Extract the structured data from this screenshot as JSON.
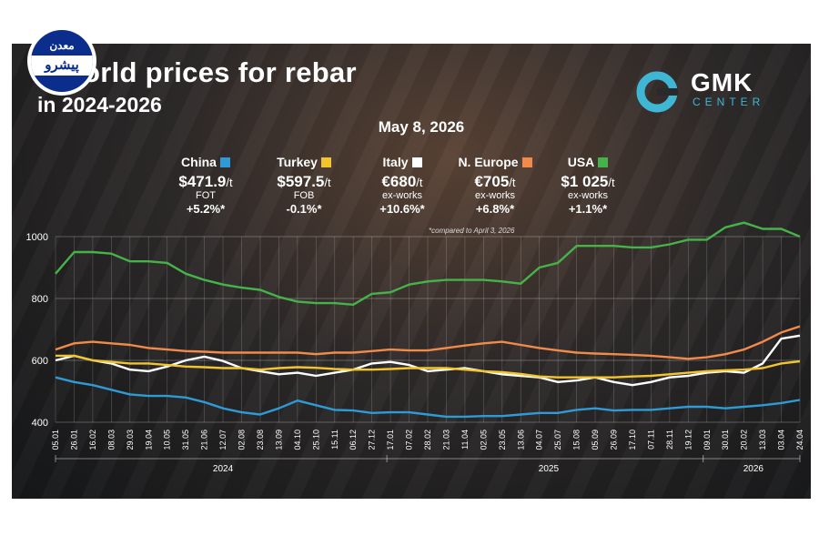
{
  "header": {
    "title_line1": "orld prices for rebar",
    "title_line2": "in 2024-2026",
    "date": "May 8, 2026",
    "note": "*compared to April 3, 2026"
  },
  "brand": {
    "name": "GMK",
    "sub": "CENTER",
    "accent": "#3fb6d4"
  },
  "logo": {
    "top": "معدن",
    "bottom": "پیشرو",
    "bg": "#0b2d8c"
  },
  "stats": [
    {
      "name": "China",
      "color": "#2f9bd6",
      "price": "$471.9",
      "unit": "/t",
      "basis": "FOT",
      "change": "+5.2%*"
    },
    {
      "name": "Turkey",
      "color": "#f2c42e",
      "price": "$597.5",
      "unit": "/t",
      "basis": "FOB",
      "change": "-0.1%*"
    },
    {
      "name": "Italy",
      "color": "#ffffff",
      "price": "€680",
      "unit": "/t",
      "basis": "ex-works",
      "change": "+10.6%*"
    },
    {
      "name": "N. Europe",
      "color": "#f28a4a",
      "price": "€705",
      "unit": "/t",
      "basis": "ex-works",
      "change": "+6.8%*"
    },
    {
      "name": "USA",
      "color": "#46b34a",
      "price": "$1 025",
      "unit": "/t",
      "basis": "ex-works",
      "change": "+1.1%*"
    }
  ],
  "chart_data": {
    "type": "line",
    "ylim": [
      400,
      1000
    ],
    "yticks": [
      "400",
      "600",
      "800",
      "1000"
    ],
    "grid": true,
    "x": [
      "05.01",
      "26.01",
      "16.02",
      "08.03",
      "29.03",
      "19.04",
      "10.05",
      "31.05",
      "21.06",
      "12.07",
      "02.08",
      "23.08",
      "13.09",
      "04.10",
      "25.10",
      "15.11",
      "06.12",
      "27.12",
      "17.01",
      "07.02",
      "28.02",
      "21.03",
      "11.04",
      "02.05",
      "23.05",
      "13.06",
      "04.07",
      "25.07",
      "15.08",
      "05.09",
      "26.09",
      "17.10",
      "07.11",
      "28.11",
      "19.12",
      "09.01",
      "30.01",
      "20.02",
      "13.03",
      "03.04",
      "24.04"
    ],
    "year_labels": [
      "2024",
      "2025",
      "2026"
    ],
    "series": [
      {
        "name": "USA",
        "color": "#46b34a",
        "values": [
          880,
          950,
          950,
          945,
          920,
          920,
          915,
          880,
          860,
          845,
          835,
          828,
          805,
          790,
          785,
          785,
          780,
          815,
          820,
          845,
          855,
          860,
          860,
          860,
          855,
          848,
          900,
          915,
          970,
          970,
          970,
          965,
          965,
          975,
          990,
          990,
          1030,
          1045,
          1025,
          1025,
          1000
        ]
      },
      {
        "name": "N. Europe",
        "color": "#f28a4a",
        "values": [
          635,
          655,
          660,
          655,
          650,
          640,
          635,
          630,
          628,
          625,
          625,
          625,
          625,
          625,
          620,
          625,
          625,
          630,
          635,
          632,
          632,
          640,
          648,
          655,
          660,
          650,
          640,
          632,
          625,
          622,
          620,
          618,
          615,
          610,
          605,
          610,
          620,
          635,
          660,
          690,
          710
        ]
      },
      {
        "name": "Italy",
        "color": "#ffffff",
        "values": [
          600,
          615,
          600,
          590,
          570,
          565,
          580,
          600,
          612,
          598,
          575,
          565,
          555,
          560,
          550,
          560,
          570,
          590,
          595,
          585,
          565,
          570,
          575,
          565,
          555,
          550,
          545,
          530,
          535,
          545,
          530,
          520,
          530,
          545,
          550,
          560,
          565,
          560,
          590,
          670,
          680
        ]
      },
      {
        "name": "Turkey",
        "color": "#f2c42e",
        "values": [
          615,
          615,
          600,
          595,
          590,
          590,
          585,
          580,
          578,
          575,
          575,
          570,
          575,
          578,
          576,
          572,
          570,
          570,
          572,
          575,
          575,
          575,
          570,
          565,
          562,
          556,
          548,
          545,
          545,
          545,
          545,
          548,
          550,
          555,
          560,
          565,
          568,
          570,
          575,
          590,
          597
        ]
      },
      {
        "name": "China",
        "color": "#2f9bd6",
        "values": [
          545,
          530,
          520,
          505,
          490,
          485,
          485,
          480,
          465,
          445,
          432,
          425,
          445,
          470,
          455,
          440,
          438,
          430,
          432,
          432,
          425,
          418,
          418,
          420,
          420,
          425,
          430,
          430,
          440,
          445,
          438,
          440,
          440,
          445,
          450,
          450,
          445,
          450,
          455,
          462,
          472
        ]
      }
    ]
  }
}
